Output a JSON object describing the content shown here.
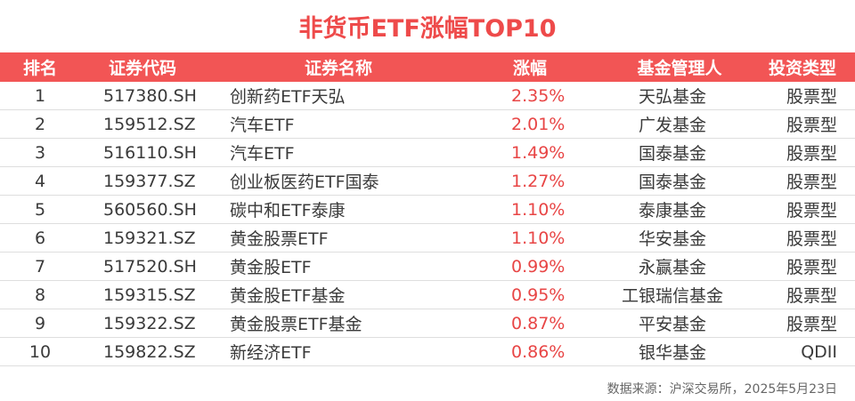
{
  "title": "非货币ETF涨幅TOP10",
  "columns": [
    "排名",
    "证券代码",
    "证券名称",
    "涨幅",
    "基金管理人",
    "投资类型"
  ],
  "rows": [
    {
      "rank": "1",
      "code": "517380.SH",
      "name": "创新药ETF天弘",
      "change": "2.35%",
      "manager": "天弘基金",
      "type": "股票型"
    },
    {
      "rank": "2",
      "code": "159512.SZ",
      "name": "汽车ETF",
      "change": "2.01%",
      "manager": "广发基金",
      "type": "股票型"
    },
    {
      "rank": "3",
      "code": "516110.SH",
      "name": "汽车ETF",
      "change": "1.49%",
      "manager": "国泰基金",
      "type": "股票型"
    },
    {
      "rank": "4",
      "code": "159377.SZ",
      "name": "创业板医药ETF国泰",
      "change": "1.27%",
      "manager": "国泰基金",
      "type": "股票型"
    },
    {
      "rank": "5",
      "code": "560560.SH",
      "name": "碳中和ETF泰康",
      "change": "1.10%",
      "manager": "泰康基金",
      "type": "股票型"
    },
    {
      "rank": "6",
      "code": "159321.SZ",
      "name": "黄金股票ETF",
      "change": "1.10%",
      "manager": "华安基金",
      "type": "股票型"
    },
    {
      "rank": "7",
      "code": "517520.SH",
      "name": "黄金股ETF",
      "change": "0.99%",
      "manager": "永赢基金",
      "type": "股票型"
    },
    {
      "rank": "8",
      "code": "159315.SZ",
      "name": "黄金股ETF基金",
      "change": "0.95%",
      "manager": "工银瑞信基金",
      "type": "股票型"
    },
    {
      "rank": "9",
      "code": "159322.SZ",
      "name": "黄金股票ETF基金",
      "change": "0.87%",
      "manager": "平安基金",
      "type": "股票型"
    },
    {
      "rank": "10",
      "code": "159822.SZ",
      "name": "新经济ETF",
      "change": "0.86%",
      "manager": "银华基金",
      "type": "QDII"
    }
  ],
  "source": "数据来源：沪深交易所，2025年5月23日",
  "colors": {
    "accent": "#f25555",
    "title": "#ee4a4a",
    "change_text": "#e84545"
  }
}
